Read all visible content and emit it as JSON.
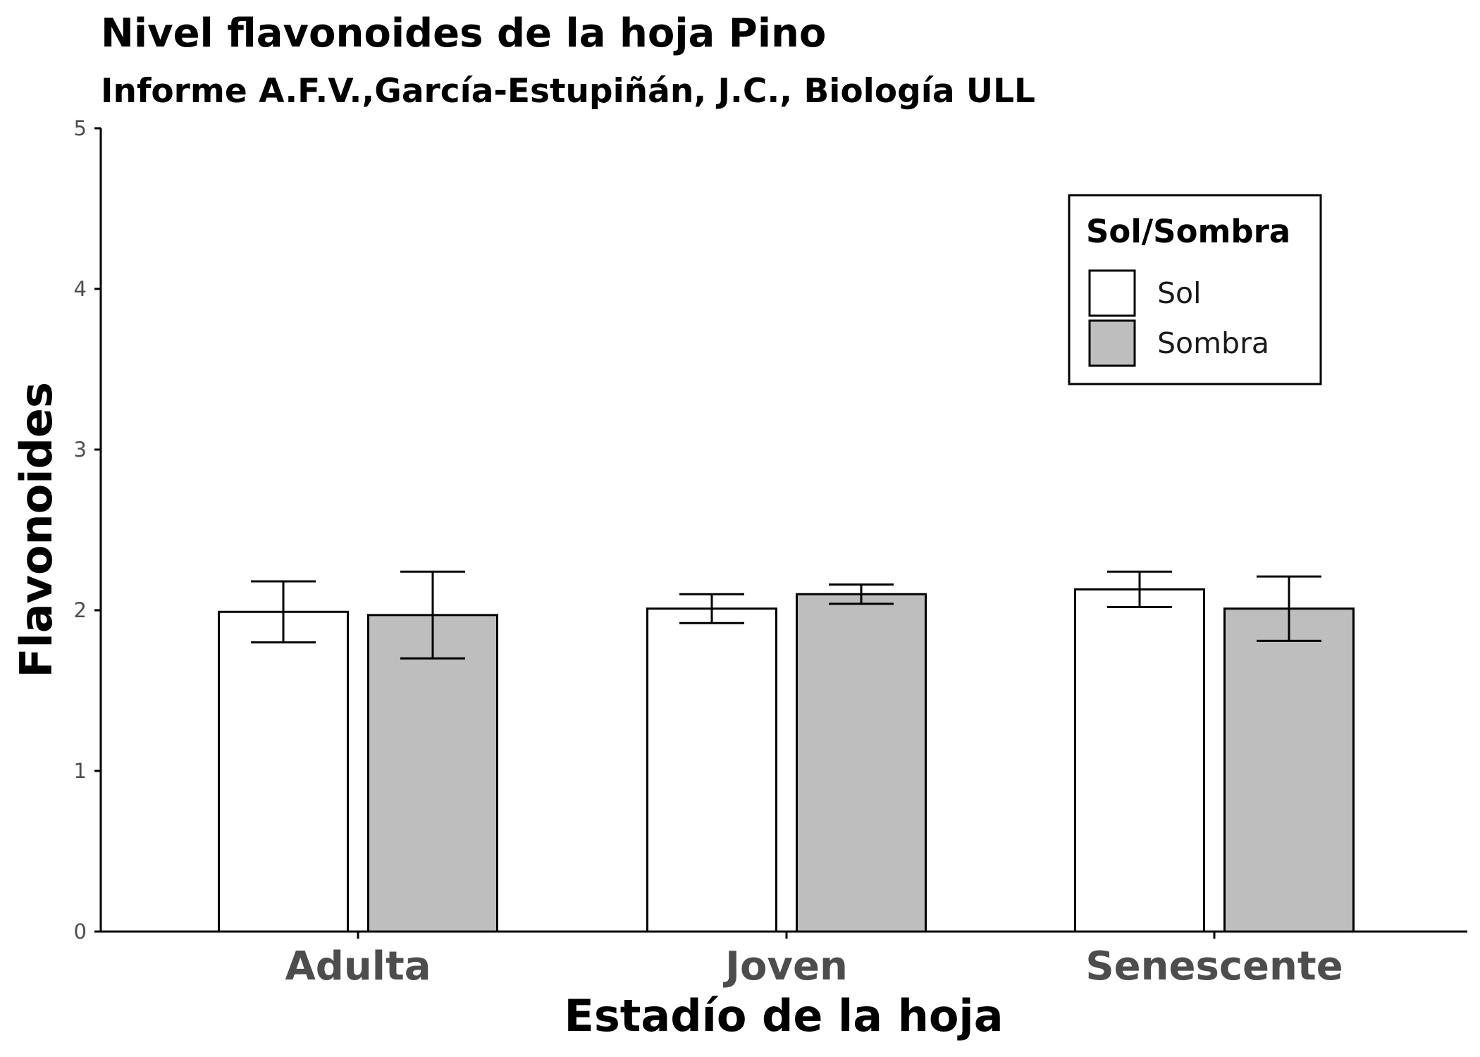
{
  "chart_data": {
    "type": "bar",
    "title": "Nivel flavonoides de la hoja Pino",
    "subtitle": "Informe A.F.V.,García-Estupiñán, J.C., Biología ULL",
    "xlabel": "Estadío de la hoja",
    "ylabel": "Flavonoides",
    "ylim": [
      0,
      5
    ],
    "yticks": [
      0,
      1,
      2,
      3,
      4,
      5
    ],
    "categories": [
      "Adulta",
      "Joven",
      "Senescente"
    ],
    "series": [
      {
        "name": "Sol",
        "color": "#ffffff",
        "values": [
          1.99,
          2.01,
          2.13
        ],
        "err_low": [
          1.8,
          1.92,
          2.02
        ],
        "err_high": [
          2.18,
          2.1,
          2.24
        ]
      },
      {
        "name": "Sombra",
        "color": "#bebebe",
        "values": [
          1.97,
          2.1,
          2.01
        ],
        "err_low": [
          1.7,
          2.04,
          1.81
        ],
        "err_high": [
          2.24,
          2.16,
          2.21
        ]
      }
    ],
    "legend": {
      "title": "Sol/Sombra",
      "position": "top-right"
    },
    "grid": false
  }
}
